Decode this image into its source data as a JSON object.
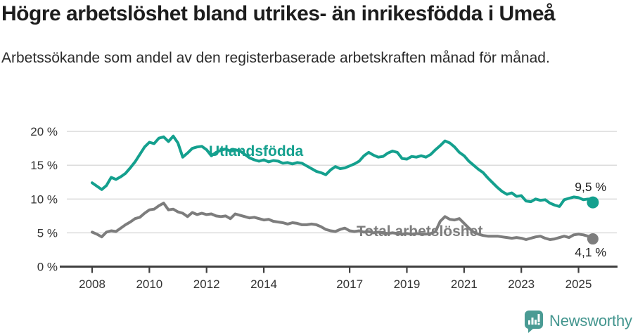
{
  "header": {
    "title": "Högre arbetslöshet bland utrikes- än inrikesfödda i Umeå",
    "subtitle": "Arbetssökande som andel av den registerbaserade arbetskraften månad för månad."
  },
  "chart_data": {
    "type": "line",
    "title": "Högre arbetslöshet bland utrikes- än inrikesfödda i Umeå",
    "subtitle": "Arbetssökande som andel av den registerbaserade arbetskraften månad för månad.",
    "ylim": [
      0,
      20
    ],
    "y_tick_values": [
      0,
      5,
      10,
      15,
      20
    ],
    "y_tick_labels": [
      "0 %",
      "5 %",
      "10 %",
      "15 %",
      "20 %"
    ],
    "x_tick_values": [
      2008,
      2010,
      2012,
      2014,
      2017,
      2019,
      2021,
      2023,
      2025
    ],
    "x_tick_labels": [
      "2008",
      "2010",
      "2012",
      "2014",
      "2017",
      "2019",
      "2021",
      "2023",
      "2025"
    ],
    "x_start": 2008.0,
    "x_step_years": 0.16667,
    "grid": "horizontal",
    "legend_position": "inline-labels",
    "series": [
      {
        "name": "Utlandsfödda",
        "color": "#14a08e",
        "end_label": "9,5 %",
        "end_value": 9.5,
        "values": [
          12.4,
          11.9,
          11.4,
          12.0,
          13.2,
          12.9,
          13.3,
          13.8,
          14.6,
          15.5,
          16.6,
          17.7,
          18.4,
          18.2,
          19.0,
          19.2,
          18.5,
          19.3,
          18.3,
          16.2,
          16.8,
          17.5,
          17.7,
          17.8,
          17.3,
          16.4,
          16.9,
          17.2,
          17.4,
          17.1,
          17.3,
          17.1,
          16.6,
          16.1,
          15.8,
          15.6,
          15.8,
          15.5,
          15.7,
          15.6,
          15.3,
          15.4,
          15.2,
          15.4,
          15.3,
          14.9,
          14.5,
          14.1,
          13.9,
          13.6,
          14.3,
          14.8,
          14.5,
          14.6,
          14.9,
          15.2,
          15.6,
          16.4,
          16.9,
          16.5,
          16.2,
          16.3,
          16.8,
          17.1,
          16.9,
          16.0,
          15.9,
          16.3,
          16.2,
          16.4,
          16.2,
          16.6,
          17.3,
          17.9,
          18.6,
          18.3,
          17.7,
          16.9,
          16.4,
          15.6,
          15.0,
          14.4,
          13.9,
          13.1,
          12.4,
          11.7,
          11.1,
          10.7,
          10.9,
          10.4,
          10.5,
          9.7,
          9.6,
          10.0,
          9.8,
          9.9,
          9.4,
          9.1,
          8.9,
          9.9,
          10.1,
          10.3,
          10.2,
          9.9,
          10.0,
          9.5
        ]
      },
      {
        "name": "Total arbetslöshet",
        "color": "#7d7d7d",
        "end_label": "4,1 %",
        "end_value": 4.1,
        "values": [
          5.1,
          4.8,
          4.4,
          5.1,
          5.3,
          5.2,
          5.7,
          6.2,
          6.6,
          7.1,
          7.3,
          7.9,
          8.4,
          8.5,
          9.0,
          9.4,
          8.4,
          8.5,
          8.1,
          7.9,
          7.4,
          8.0,
          7.7,
          7.9,
          7.7,
          7.8,
          7.5,
          7.4,
          7.5,
          7.1,
          7.8,
          7.6,
          7.4,
          7.2,
          7.3,
          7.1,
          6.9,
          7.0,
          6.7,
          6.6,
          6.5,
          6.3,
          6.5,
          6.4,
          6.2,
          6.2,
          6.3,
          6.2,
          5.9,
          5.5,
          5.3,
          5.2,
          5.5,
          5.7,
          5.3,
          5.2,
          5.3,
          5.1,
          5.2,
          5.0,
          5.1,
          5.0,
          4.9,
          5.0,
          4.9,
          4.8,
          4.9,
          4.8,
          4.9,
          4.8,
          4.8,
          4.9,
          5.2,
          6.7,
          7.4,
          7.0,
          6.9,
          7.1,
          6.4,
          5.7,
          5.1,
          4.8,
          4.6,
          4.5,
          4.5,
          4.5,
          4.4,
          4.3,
          4.2,
          4.3,
          4.2,
          4.0,
          4.2,
          4.4,
          4.5,
          4.2,
          4.0,
          4.1,
          4.3,
          4.5,
          4.3,
          4.7,
          4.8,
          4.7,
          4.5,
          4.1
        ]
      }
    ]
  },
  "footer": {
    "brand": "Newsworthy",
    "brand_color": "#44968f",
    "icon_color": "#4a9b94"
  }
}
